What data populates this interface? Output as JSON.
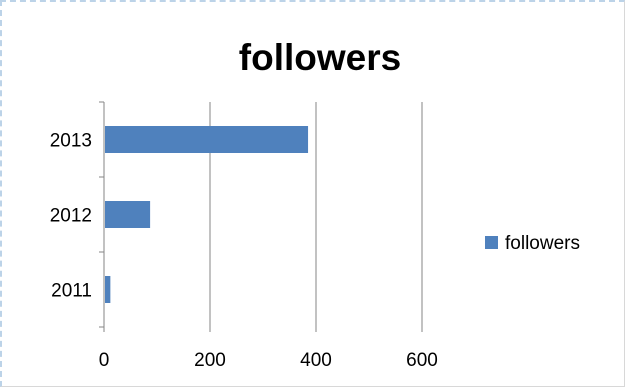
{
  "chart_data": {
    "type": "bar",
    "orientation": "horizontal",
    "title": "followers",
    "xlabel": "",
    "ylabel": "",
    "categories": [
      "2011",
      "2012",
      "2013"
    ],
    "series": [
      {
        "name": "followers",
        "values": [
          12,
          87,
          385
        ]
      }
    ],
    "xlim": [
      0,
      600
    ],
    "x_ticks": [
      "0",
      "200",
      "400",
      "600"
    ],
    "grid": true,
    "legend_position": "right",
    "colors": {
      "bar": "#4f81bd",
      "grid": "#868686",
      "axis": "#868686",
      "frame_dash": "#bcd3e8"
    }
  }
}
